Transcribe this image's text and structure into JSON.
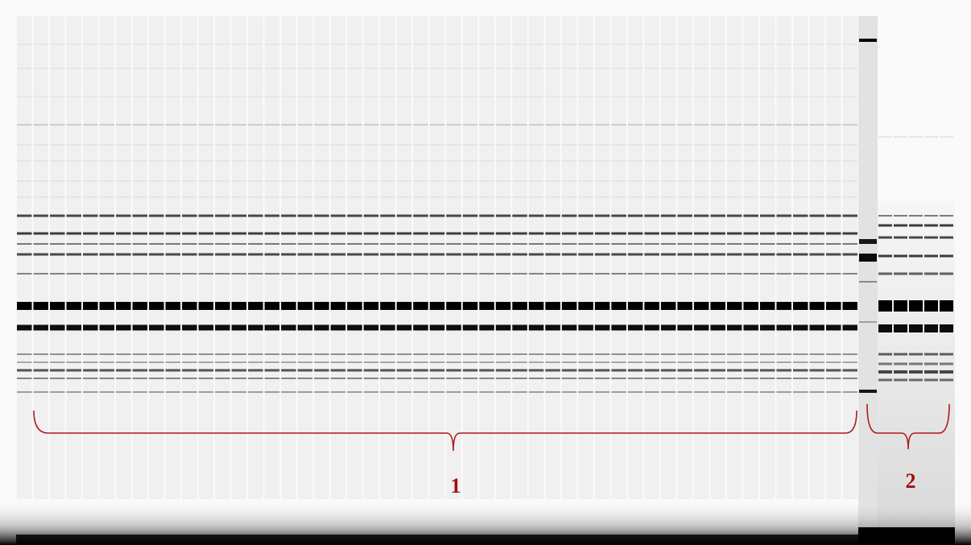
{
  "labels": {
    "group1": "1",
    "group2": "2"
  }
}
